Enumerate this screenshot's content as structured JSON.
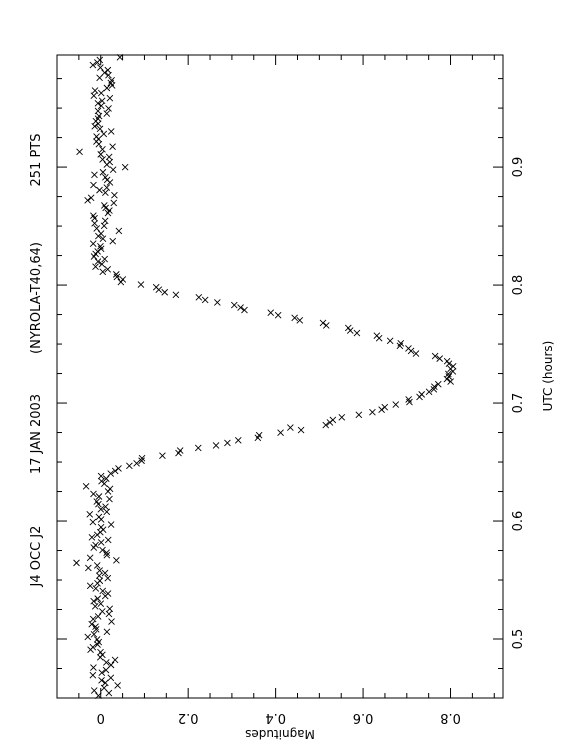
{
  "header": {
    "event": "J4 OCC J2",
    "date": "17 JAN 2003",
    "observer": "(NYROLA-T40,64)",
    "points": "251 PTS"
  },
  "chart_data": {
    "type": "scatter",
    "xlabel": "UTC (hours)",
    "ylabel": "Magnitudes",
    "xlim": [
      0.45,
      0.995
    ],
    "ylim": [
      -0.1,
      0.92
    ],
    "x_ticks": [
      0.5,
      0.6,
      0.7,
      0.8,
      0.9
    ],
    "x_tick_labels": [
      "0.5",
      "0.6",
      "0.7",
      "0.8",
      "0.9"
    ],
    "y_ticks": [
      0,
      0.2,
      0.4,
      0.6,
      0.8
    ],
    "y_tick_labels": [
      "0",
      "0.2",
      "0.4",
      "0.6",
      "0.8"
    ],
    "marker": "x",
    "grid": false,
    "baseline_mag": 0.0,
    "min_mag": 0.8,
    "minimum_time": 0.725,
    "ingress_start": 0.635,
    "egress_end": 0.815,
    "n_points": 251
  }
}
